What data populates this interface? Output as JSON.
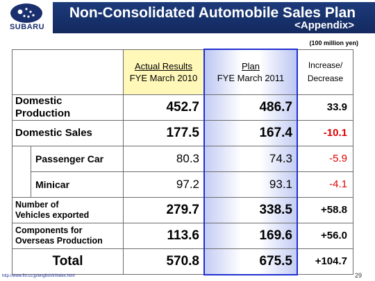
{
  "header": {
    "title": "Non-Consolidated Automobile Sales Plan",
    "subtitle": "<Appendix>",
    "logo_text": "SUBARU"
  },
  "unit_note": "(100 million yen)",
  "columns": {
    "actual_line1": "Actual Results",
    "actual_line2": "FYE March 2010",
    "plan_line1": "Plan",
    "plan_line2": "FYE March 2011",
    "inc_line1": "Increase/",
    "inc_line2": "Decrease"
  },
  "rows": {
    "domestic_production": {
      "label_line1": "Domestic",
      "label_line2": "Production",
      "actual": "452.7",
      "plan": "486.7",
      "change": "33.9"
    },
    "domestic_sales": {
      "label": "Domestic Sales",
      "actual": "177.5",
      "plan": "167.4",
      "change": "-10.1"
    },
    "passenger_car": {
      "label": "Passenger Car",
      "actual": "80.3",
      "plan": "74.3",
      "change": "-5.9"
    },
    "minicar": {
      "label": "Minicar",
      "actual": "97.2",
      "plan": "93.1",
      "change": "-4.1"
    },
    "vehicles_exported": {
      "label_line1": "Number of",
      "label_line2": "Vehicles exported",
      "actual": "279.7",
      "plan": "338.5",
      "change": "+58.8"
    },
    "components": {
      "label_line1": "Components for",
      "label_line2": "Overseas Production",
      "actual": "113.6",
      "plan": "169.6",
      "change": "+56.0"
    },
    "total": {
      "label": "Total",
      "actual": "570.8",
      "plan": "675.5",
      "change": "+104.7"
    }
  },
  "colors": {
    "title_bar": "#16306a",
    "actual_header": "#fff8b8",
    "plan_border": "#1f2fd0",
    "negative": "#e00000"
  },
  "footer": {
    "url": "http://www.fhi.co.jp/english/ir/index.html",
    "page": "29"
  }
}
